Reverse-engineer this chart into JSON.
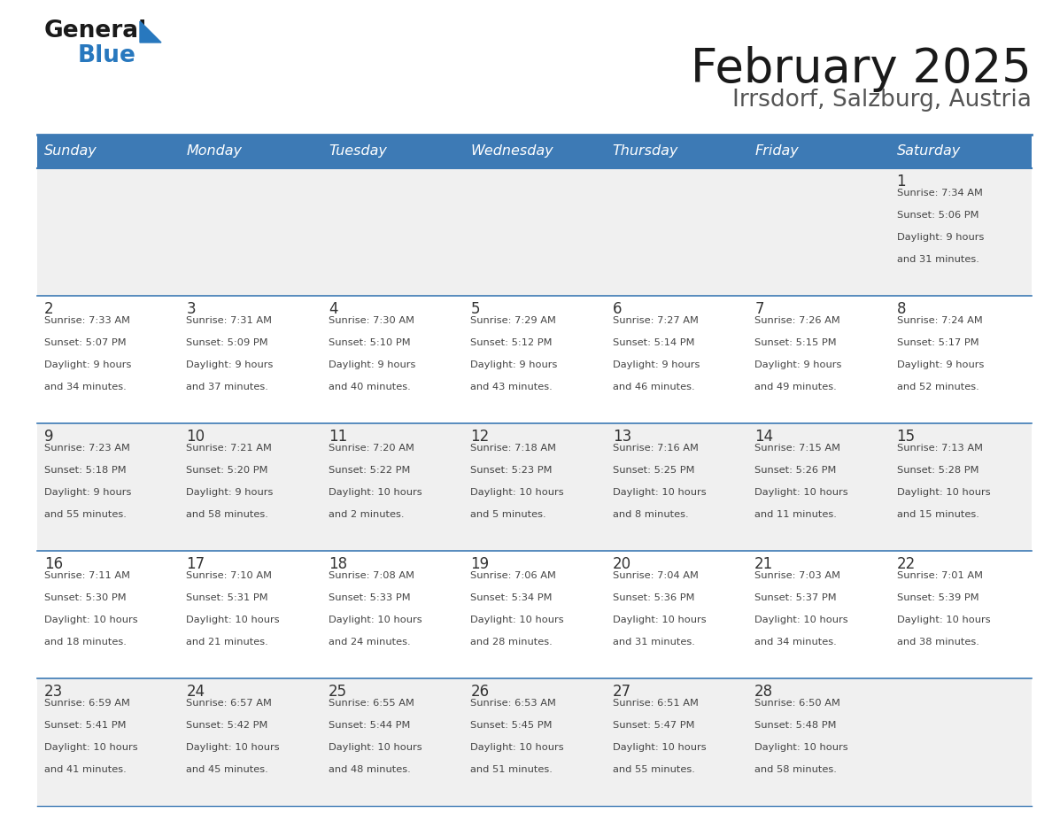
{
  "title": "February 2025",
  "subtitle": "Irrsdorf, Salzburg, Austria",
  "header_bg": "#3d7ab5",
  "header_text": "#ffffff",
  "day_names": [
    "Sunday",
    "Monday",
    "Tuesday",
    "Wednesday",
    "Thursday",
    "Friday",
    "Saturday"
  ],
  "row_bg_odd": "#f0f0f0",
  "row_bg_even": "#ffffff",
  "divider_color": "#3d7ab5",
  "text_color": "#444444",
  "num_color": "#333333",
  "logo_general_color": "#1a1a1a",
  "logo_blue_color": "#2878be",
  "days": [
    {
      "day": 1,
      "col": 6,
      "row": 0,
      "sunrise": "7:34 AM",
      "sunset": "5:06 PM",
      "daylight_h": "9 hours",
      "daylight_m": "and 31 minutes."
    },
    {
      "day": 2,
      "col": 0,
      "row": 1,
      "sunrise": "7:33 AM",
      "sunset": "5:07 PM",
      "daylight_h": "9 hours",
      "daylight_m": "and 34 minutes."
    },
    {
      "day": 3,
      "col": 1,
      "row": 1,
      "sunrise": "7:31 AM",
      "sunset": "5:09 PM",
      "daylight_h": "9 hours",
      "daylight_m": "and 37 minutes."
    },
    {
      "day": 4,
      "col": 2,
      "row": 1,
      "sunrise": "7:30 AM",
      "sunset": "5:10 PM",
      "daylight_h": "9 hours",
      "daylight_m": "and 40 minutes."
    },
    {
      "day": 5,
      "col": 3,
      "row": 1,
      "sunrise": "7:29 AM",
      "sunset": "5:12 PM",
      "daylight_h": "9 hours",
      "daylight_m": "and 43 minutes."
    },
    {
      "day": 6,
      "col": 4,
      "row": 1,
      "sunrise": "7:27 AM",
      "sunset": "5:14 PM",
      "daylight_h": "9 hours",
      "daylight_m": "and 46 minutes."
    },
    {
      "day": 7,
      "col": 5,
      "row": 1,
      "sunrise": "7:26 AM",
      "sunset": "5:15 PM",
      "daylight_h": "9 hours",
      "daylight_m": "and 49 minutes."
    },
    {
      "day": 8,
      "col": 6,
      "row": 1,
      "sunrise": "7:24 AM",
      "sunset": "5:17 PM",
      "daylight_h": "9 hours",
      "daylight_m": "and 52 minutes."
    },
    {
      "day": 9,
      "col": 0,
      "row": 2,
      "sunrise": "7:23 AM",
      "sunset": "5:18 PM",
      "daylight_h": "9 hours",
      "daylight_m": "and 55 minutes."
    },
    {
      "day": 10,
      "col": 1,
      "row": 2,
      "sunrise": "7:21 AM",
      "sunset": "5:20 PM",
      "daylight_h": "9 hours",
      "daylight_m": "and 58 minutes."
    },
    {
      "day": 11,
      "col": 2,
      "row": 2,
      "sunrise": "7:20 AM",
      "sunset": "5:22 PM",
      "daylight_h": "10 hours",
      "daylight_m": "and 2 minutes."
    },
    {
      "day": 12,
      "col": 3,
      "row": 2,
      "sunrise": "7:18 AM",
      "sunset": "5:23 PM",
      "daylight_h": "10 hours",
      "daylight_m": "and 5 minutes."
    },
    {
      "day": 13,
      "col": 4,
      "row": 2,
      "sunrise": "7:16 AM",
      "sunset": "5:25 PM",
      "daylight_h": "10 hours",
      "daylight_m": "and 8 minutes."
    },
    {
      "day": 14,
      "col": 5,
      "row": 2,
      "sunrise": "7:15 AM",
      "sunset": "5:26 PM",
      "daylight_h": "10 hours",
      "daylight_m": "and 11 minutes."
    },
    {
      "day": 15,
      "col": 6,
      "row": 2,
      "sunrise": "7:13 AM",
      "sunset": "5:28 PM",
      "daylight_h": "10 hours",
      "daylight_m": "and 15 minutes."
    },
    {
      "day": 16,
      "col": 0,
      "row": 3,
      "sunrise": "7:11 AM",
      "sunset": "5:30 PM",
      "daylight_h": "10 hours",
      "daylight_m": "and 18 minutes."
    },
    {
      "day": 17,
      "col": 1,
      "row": 3,
      "sunrise": "7:10 AM",
      "sunset": "5:31 PM",
      "daylight_h": "10 hours",
      "daylight_m": "and 21 minutes."
    },
    {
      "day": 18,
      "col": 2,
      "row": 3,
      "sunrise": "7:08 AM",
      "sunset": "5:33 PM",
      "daylight_h": "10 hours",
      "daylight_m": "and 24 minutes."
    },
    {
      "day": 19,
      "col": 3,
      "row": 3,
      "sunrise": "7:06 AM",
      "sunset": "5:34 PM",
      "daylight_h": "10 hours",
      "daylight_m": "and 28 minutes."
    },
    {
      "day": 20,
      "col": 4,
      "row": 3,
      "sunrise": "7:04 AM",
      "sunset": "5:36 PM",
      "daylight_h": "10 hours",
      "daylight_m": "and 31 minutes."
    },
    {
      "day": 21,
      "col": 5,
      "row": 3,
      "sunrise": "7:03 AM",
      "sunset": "5:37 PM",
      "daylight_h": "10 hours",
      "daylight_m": "and 34 minutes."
    },
    {
      "day": 22,
      "col": 6,
      "row": 3,
      "sunrise": "7:01 AM",
      "sunset": "5:39 PM",
      "daylight_h": "10 hours",
      "daylight_m": "and 38 minutes."
    },
    {
      "day": 23,
      "col": 0,
      "row": 4,
      "sunrise": "6:59 AM",
      "sunset": "5:41 PM",
      "daylight_h": "10 hours",
      "daylight_m": "and 41 minutes."
    },
    {
      "day": 24,
      "col": 1,
      "row": 4,
      "sunrise": "6:57 AM",
      "sunset": "5:42 PM",
      "daylight_h": "10 hours",
      "daylight_m": "and 45 minutes."
    },
    {
      "day": 25,
      "col": 2,
      "row": 4,
      "sunrise": "6:55 AM",
      "sunset": "5:44 PM",
      "daylight_h": "10 hours",
      "daylight_m": "and 48 minutes."
    },
    {
      "day": 26,
      "col": 3,
      "row": 4,
      "sunrise": "6:53 AM",
      "sunset": "5:45 PM",
      "daylight_h": "10 hours",
      "daylight_m": "and 51 minutes."
    },
    {
      "day": 27,
      "col": 4,
      "row": 4,
      "sunrise": "6:51 AM",
      "sunset": "5:47 PM",
      "daylight_h": "10 hours",
      "daylight_m": "and 55 minutes."
    },
    {
      "day": 28,
      "col": 5,
      "row": 4,
      "sunrise": "6:50 AM",
      "sunset": "5:48 PM",
      "daylight_h": "10 hours",
      "daylight_m": "and 58 minutes."
    }
  ]
}
